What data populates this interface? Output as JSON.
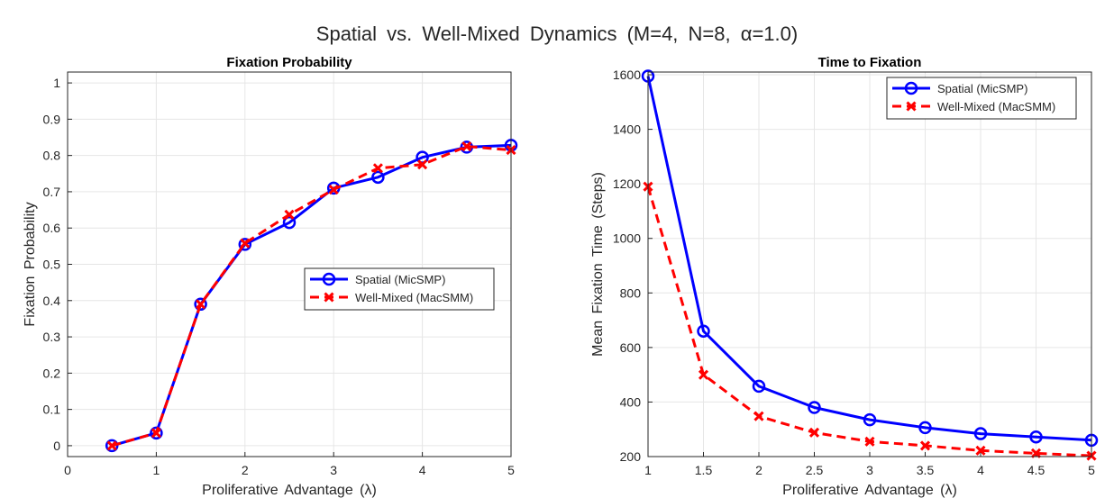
{
  "figure": {
    "title": "Spatial  vs.  Well-Mixed  Dynamics  (M=4,  N=8,  α=1.0)"
  },
  "colors": {
    "spatial": "#0000ff",
    "well_mixed": "#ff0000"
  },
  "chart_data": [
    {
      "type": "line",
      "title": "Fixation Probability",
      "xlabel": "Proliferative  Advantage  (λ)",
      "ylabel": "Fixation Probability",
      "xlim": [
        0,
        5
      ],
      "ylim": [
        -0.03,
        1.03
      ],
      "xticks": [
        0,
        1,
        2,
        3,
        4,
        5
      ],
      "xtick_labels": [
        "0",
        "1",
        "2",
        "3",
        "4",
        "5"
      ],
      "yticks": [
        0,
        0.1,
        0.2,
        0.3,
        0.4,
        0.5,
        0.6,
        0.7,
        0.8,
        0.9,
        1
      ],
      "ytick_labels": [
        "0",
        "0.1",
        "0.2",
        "0.3",
        "0.4",
        "0.5",
        "0.6",
        "0.7",
        "0.8",
        "0.9",
        "1"
      ],
      "grid": true,
      "legend_position": "center-right",
      "x": [
        0.5,
        1,
        1.5,
        2,
        2.5,
        3,
        3.5,
        4,
        4.5,
        5
      ],
      "series": [
        {
          "name": "Spatial (MicSMP)",
          "marker": "circle",
          "dash": "solid",
          "values": [
            0.0,
            0.035,
            0.39,
            0.555,
            0.615,
            0.71,
            0.74,
            0.795,
            0.823,
            0.828
          ]
        },
        {
          "name": "Well-Mixed (MacSMM)",
          "marker": "x",
          "dash": "dashed",
          "values": [
            0.0,
            0.035,
            0.39,
            0.558,
            0.637,
            0.706,
            0.765,
            0.775,
            0.825,
            0.815
          ]
        }
      ]
    },
    {
      "type": "line",
      "title": "Time to Fixation",
      "xlabel": "Proliferative  Advantage  (λ)",
      "ylabel": "Mean Fixation Time (Steps)",
      "xlim": [
        1,
        5
      ],
      "ylim": [
        200,
        1610
      ],
      "xticks": [
        1,
        1.5,
        2,
        2.5,
        3,
        3.5,
        4,
        4.5,
        5
      ],
      "xtick_labels": [
        "1",
        "1.5",
        "2",
        "2.5",
        "3",
        "3.5",
        "4",
        "4.5",
        "5"
      ],
      "yticks": [
        200,
        400,
        600,
        800,
        1000,
        1200,
        1400,
        1600
      ],
      "ytick_labels": [
        "200",
        "400",
        "600",
        "800",
        "1000",
        "1200",
        "1400",
        "1600"
      ],
      "grid": true,
      "legend_position": "top-right",
      "x": [
        1,
        1.5,
        2,
        2.5,
        3,
        3.5,
        4,
        4.5,
        5
      ],
      "series": [
        {
          "name": "Spatial (MicSMP)",
          "marker": "circle",
          "dash": "solid",
          "values": [
            1595,
            660,
            458,
            380,
            335,
            306,
            284,
            272,
            260
          ]
        },
        {
          "name": "Well-Mixed (MacSMM)",
          "marker": "x",
          "dash": "dashed",
          "values": [
            1190,
            500,
            348,
            288,
            255,
            240,
            222,
            212,
            203
          ]
        }
      ]
    }
  ]
}
